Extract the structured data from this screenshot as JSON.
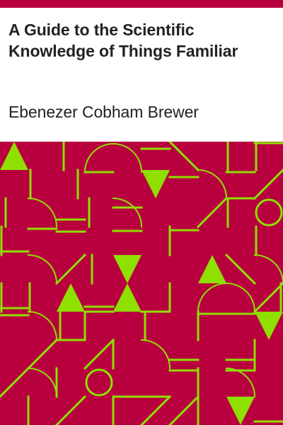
{
  "book": {
    "title": "A Guide to the Scientific Knowledge of Things Familiar",
    "author": "Ebenezer Cobham Brewer"
  },
  "colors": {
    "background": "#ffffff",
    "pattern_background": "#b8003f",
    "pattern_foreground": "#8fe000",
    "text": "#222222"
  },
  "decoration": {
    "shapes": [
      "triangle",
      "line",
      "arc",
      "circle"
    ]
  }
}
